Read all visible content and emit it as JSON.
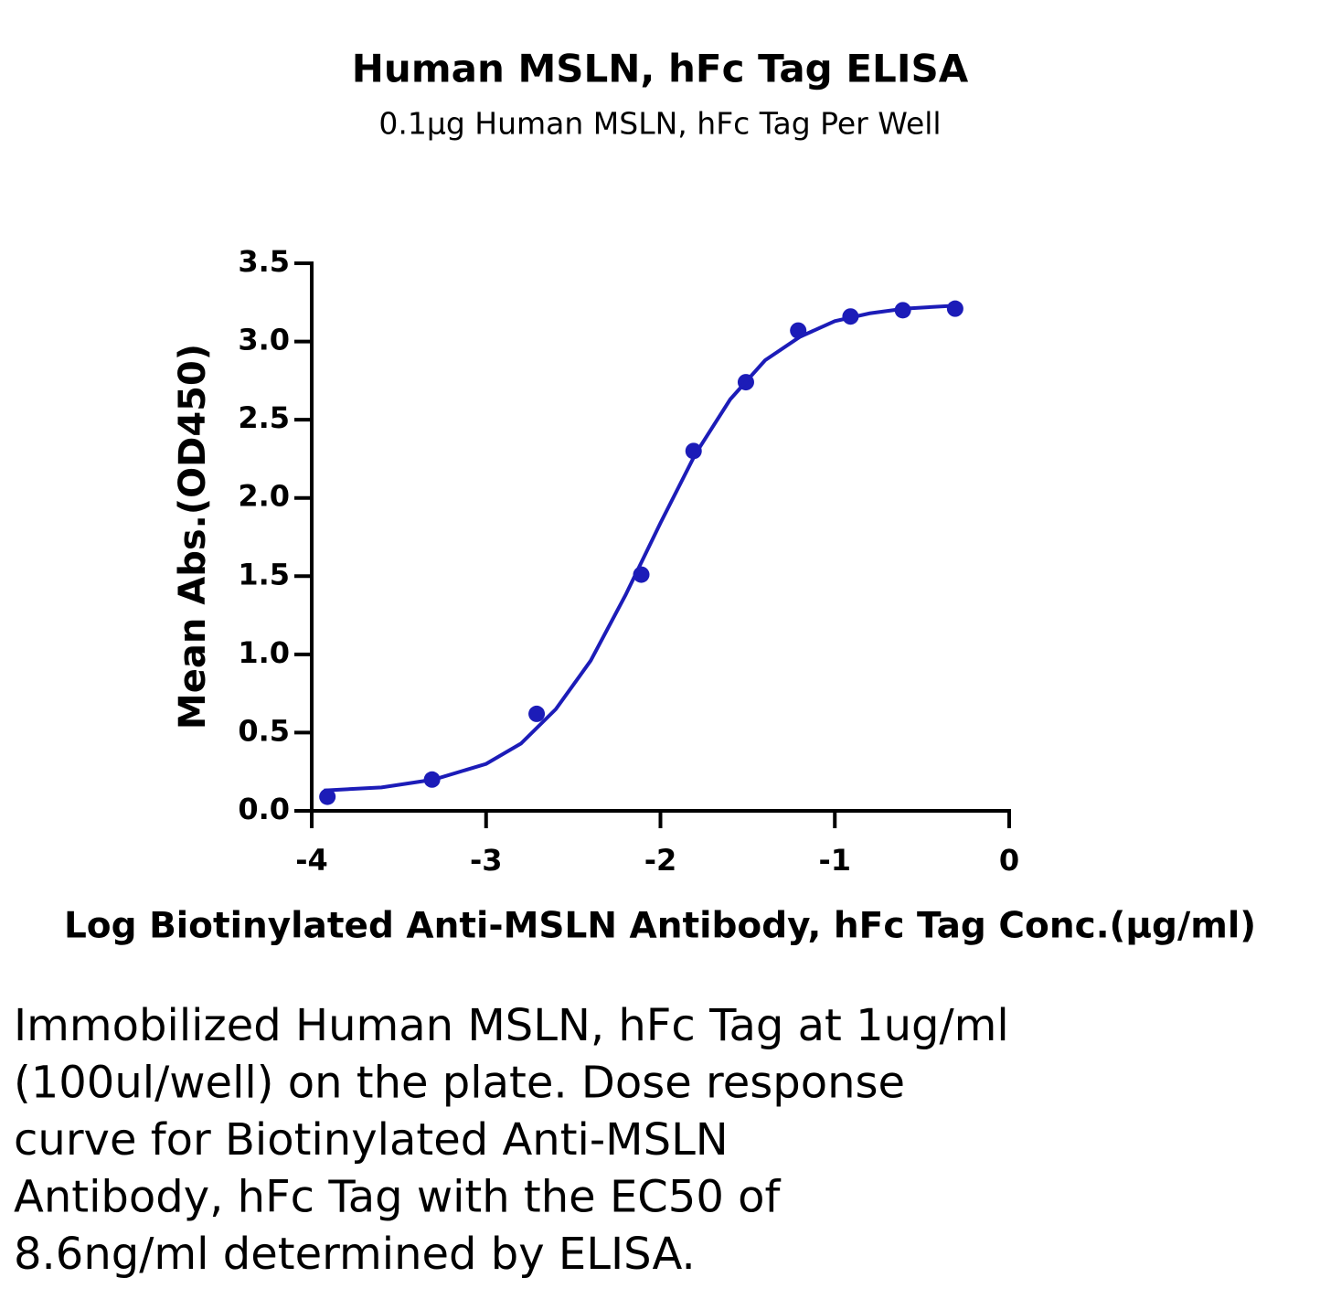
{
  "chart_data": {
    "type": "scatter",
    "title": "Human MSLN, hFc Tag ELISA",
    "subtitle": "0.1μg Human MSLN, hFc Tag Per Well",
    "x_label": "Log Biotinylated Anti-MSLN Antibody, hFc Tag Conc.(μg/ml)",
    "y_label": "Mean Abs.(OD450)",
    "xlim": [
      -4,
      0
    ],
    "ylim": [
      0,
      3.5
    ],
    "xticks": [
      -4,
      -3,
      -2,
      -1,
      0
    ],
    "yticks": [
      {
        "value": 0,
        "label": "0.0"
      },
      0.5,
      {
        "value": 1,
        "label": "1.0"
      },
      1.5,
      {
        "value": 2,
        "label": "2.0"
      },
      2.5,
      {
        "value": 3,
        "label": "3.0"
      },
      3.5
    ],
    "series": [
      {
        "mode": "markers",
        "color": "#1c1cb8",
        "x": [
          -3.91,
          -3.31,
          -2.71,
          -2.11,
          -1.81,
          -1.51,
          -1.21,
          -0.91,
          -0.61,
          -0.31
        ],
        "values": [
          0.09,
          0.2,
          0.62,
          1.51,
          2.3,
          2.74,
          3.07,
          3.16,
          3.2,
          3.21
        ]
      },
      {
        "mode": "line",
        "color": "#1c1cb8",
        "x": [
          -3.93,
          -3.6,
          -3.3,
          -3.0,
          -2.8,
          -2.6,
          -2.4,
          -2.2,
          -2.0,
          -1.8,
          -1.6,
          -1.4,
          -1.2,
          -1.0,
          -0.8,
          -0.6,
          -0.3
        ],
        "values": [
          0.13,
          0.15,
          0.2,
          0.3,
          0.43,
          0.65,
          0.96,
          1.38,
          1.84,
          2.28,
          2.63,
          2.88,
          3.03,
          3.13,
          3.18,
          3.21,
          3.23
        ]
      }
    ],
    "caption": [
      "Immobilized Human MSLN, hFc Tag at 1ug/ml",
      "(100ul/well) on the plate. Dose response",
      "curve for Biotinylated Anti-MSLN",
      "Antibody, hFc Tag with the EC50 of",
      "8.6ng/ml determined by ELISA."
    ]
  }
}
